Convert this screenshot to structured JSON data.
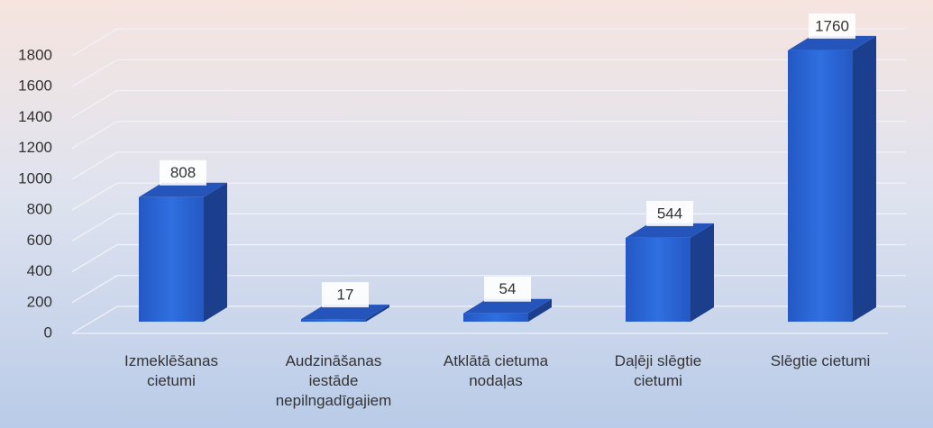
{
  "chart_data": {
    "type": "bar3d",
    "categories": [
      "Izmeklēšanas cietumi",
      "Audzināšanas iestāde nepilngadīgajiem",
      "Atklātā cietuma nodaļas",
      "Daļēji slēgtie cietumi",
      "Slēgtie cietumi"
    ],
    "values": [
      808,
      17,
      54,
      544,
      1760
    ],
    "color": "#2a66d6",
    "ylim": [
      0,
      1800
    ],
    "yticks": [
      0,
      200,
      400,
      600,
      800,
      1000,
      1200,
      1400,
      1600,
      1800
    ],
    "grid": true
  }
}
